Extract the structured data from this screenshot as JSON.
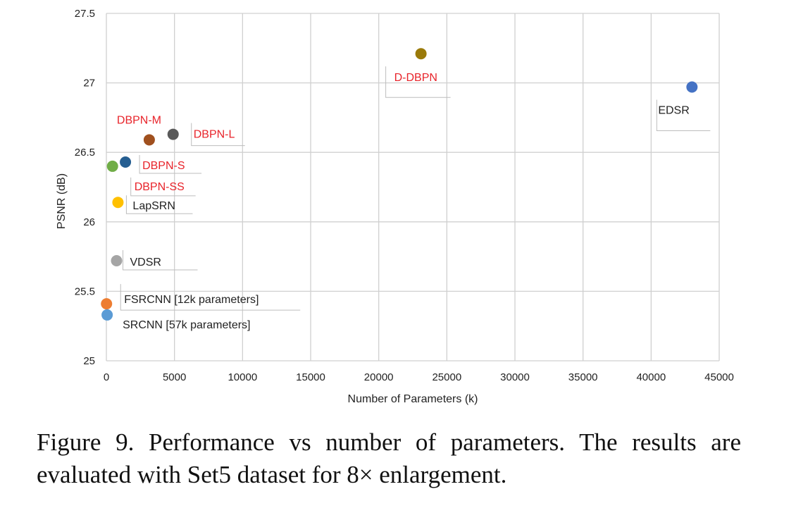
{
  "chart_data": {
    "type": "scatter",
    "xlabel": "Number of Parameters (k)",
    "ylabel": "PSNR (dB)",
    "xlim": [
      0,
      45000
    ],
    "ylim": [
      25,
      27.5
    ],
    "x_ticks": [
      "0",
      "5000",
      "10000",
      "15000",
      "20000",
      "25000",
      "30000",
      "35000",
      "40000",
      "45000"
    ],
    "y_ticks": [
      "25",
      "25.5",
      "26",
      "26.5",
      "27",
      "27.5"
    ],
    "grid": true,
    "points": [
      {
        "label": "D-DBPN",
        "x": 23100,
        "y": 27.21,
        "color": "#9a7a0a",
        "label_color": "#e8232a"
      },
      {
        "label": "EDSR",
        "x": 43000,
        "y": 26.97,
        "color": "#4472c4",
        "label_color": "#222222"
      },
      {
        "label": "DBPN-M",
        "x": 3150,
        "y": 26.59,
        "color": "#a0501e",
        "label_color": "#e8232a"
      },
      {
        "label": "DBPN-L",
        "x": 4900,
        "y": 26.63,
        "color": "#595959",
        "label_color": "#e8232a"
      },
      {
        "label": "DBPN-S",
        "x": 1400,
        "y": 26.43,
        "color": "#255e91",
        "label_color": "#e8232a"
      },
      {
        "label": "DBPN-SS",
        "x": 450,
        "y": 26.4,
        "color": "#70ad47",
        "label_color": "#e8232a"
      },
      {
        "label": "LapSRN",
        "x": 850,
        "y": 26.14,
        "color": "#ffc000",
        "label_color": "#222222"
      },
      {
        "label": "VDSR",
        "x": 750,
        "y": 25.72,
        "color": "#a5a5a5",
        "label_color": "#222222"
      },
      {
        "label": "FSRCNN [12k parameters]",
        "x": 12,
        "y": 25.41,
        "color": "#ed7d31",
        "label_color": "#222222"
      },
      {
        "label": "SRCNN [57k parameters]",
        "x": 57,
        "y": 25.33,
        "color": "#5b9bd5",
        "label_color": "#222222"
      }
    ]
  },
  "caption": "Figure 9. Performance vs number of parameters.  The results are evaluated with Set5 dataset for 8× enlargement."
}
